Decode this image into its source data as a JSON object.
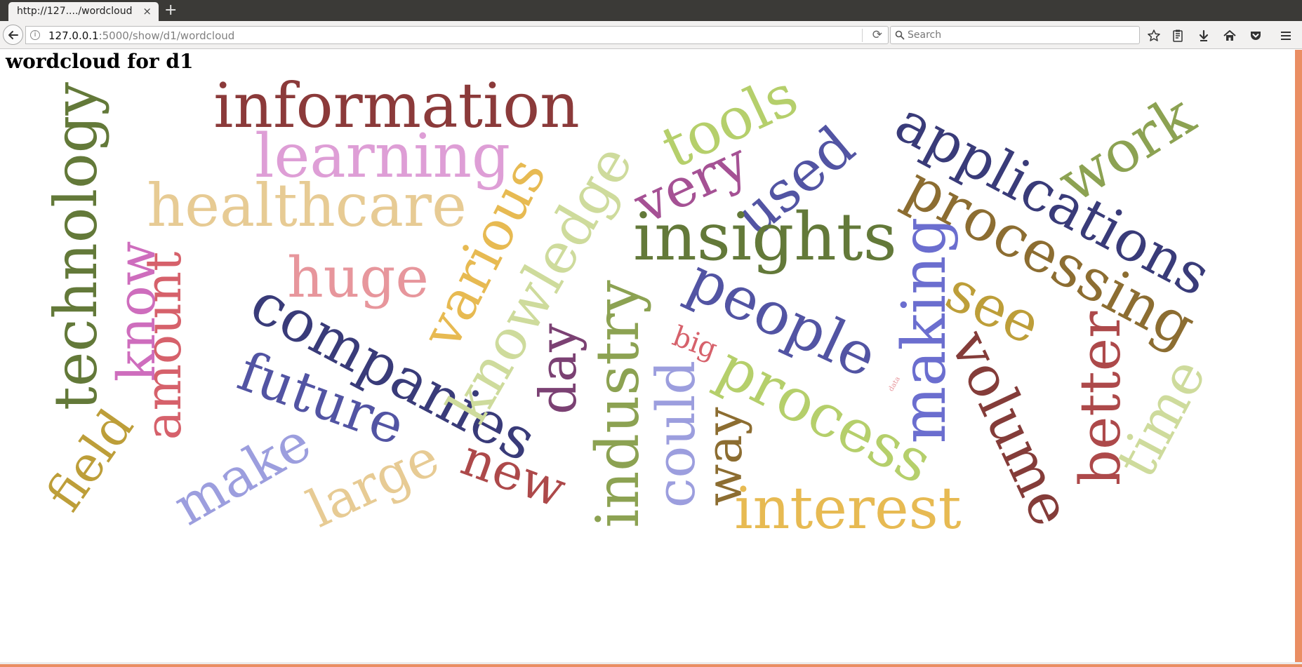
{
  "browser": {
    "tab_title": "http://127..../wordcloud",
    "tab_close_label": "×",
    "new_tab_label": "+",
    "url_host": "127.0.0.1",
    "url_path": ":5000/show/d1/wordcloud",
    "search_placeholder": "Search",
    "accent_color": "#ea8e63"
  },
  "page": {
    "title": "wordcloud for d1"
  },
  "wordcloud": {
    "words": [
      {
        "text": "information",
        "color": "#8b3a3a"
      },
      {
        "text": "learning",
        "color": "#de9ed6"
      },
      {
        "text": "healthcare",
        "color": "#e7cb94"
      },
      {
        "text": "technology",
        "color": "#637939"
      },
      {
        "text": "know",
        "color": "#ce6dbd"
      },
      {
        "text": "amount",
        "color": "#d6616b"
      },
      {
        "text": "huge",
        "color": "#e7969c"
      },
      {
        "text": "companies",
        "color": "#393b79"
      },
      {
        "text": "future",
        "color": "#5254a3"
      },
      {
        "text": "field",
        "color": "#bd9e39"
      },
      {
        "text": "make",
        "color": "#9c9ede"
      },
      {
        "text": "large",
        "color": "#e7cb94"
      },
      {
        "text": "new",
        "color": "#ad494a"
      },
      {
        "text": "various",
        "color": "#e7ba52"
      },
      {
        "text": "knowledge",
        "color": "#cedb9c"
      },
      {
        "text": "day",
        "color": "#7b4173"
      },
      {
        "text": "tools",
        "color": "#b5cf6b"
      },
      {
        "text": "very",
        "color": "#a55194"
      },
      {
        "text": "used",
        "color": "#5254a3"
      },
      {
        "text": "applications",
        "color": "#393b79"
      },
      {
        "text": "work",
        "color": "#8ca252"
      },
      {
        "text": "processing",
        "color": "#8c6d31"
      },
      {
        "text": "insights",
        "color": "#637939"
      },
      {
        "text": "making",
        "color": "#6b6ecf"
      },
      {
        "text": "people",
        "color": "#5254a3"
      },
      {
        "text": "see",
        "color": "#bd9e39"
      },
      {
        "text": "industry",
        "color": "#8ca252"
      },
      {
        "text": "big",
        "color": "#d6616b"
      },
      {
        "text": "data",
        "color": "#e7969c"
      },
      {
        "text": "could",
        "color": "#9c9ede"
      },
      {
        "text": "way",
        "color": "#8c6d31"
      },
      {
        "text": "process",
        "color": "#b5cf6b"
      },
      {
        "text": "interest",
        "color": "#e7ba52"
      },
      {
        "text": "volume",
        "color": "#843c39"
      },
      {
        "text": "better",
        "color": "#ad494a"
      },
      {
        "text": "time",
        "color": "#cedb9c"
      }
    ]
  }
}
